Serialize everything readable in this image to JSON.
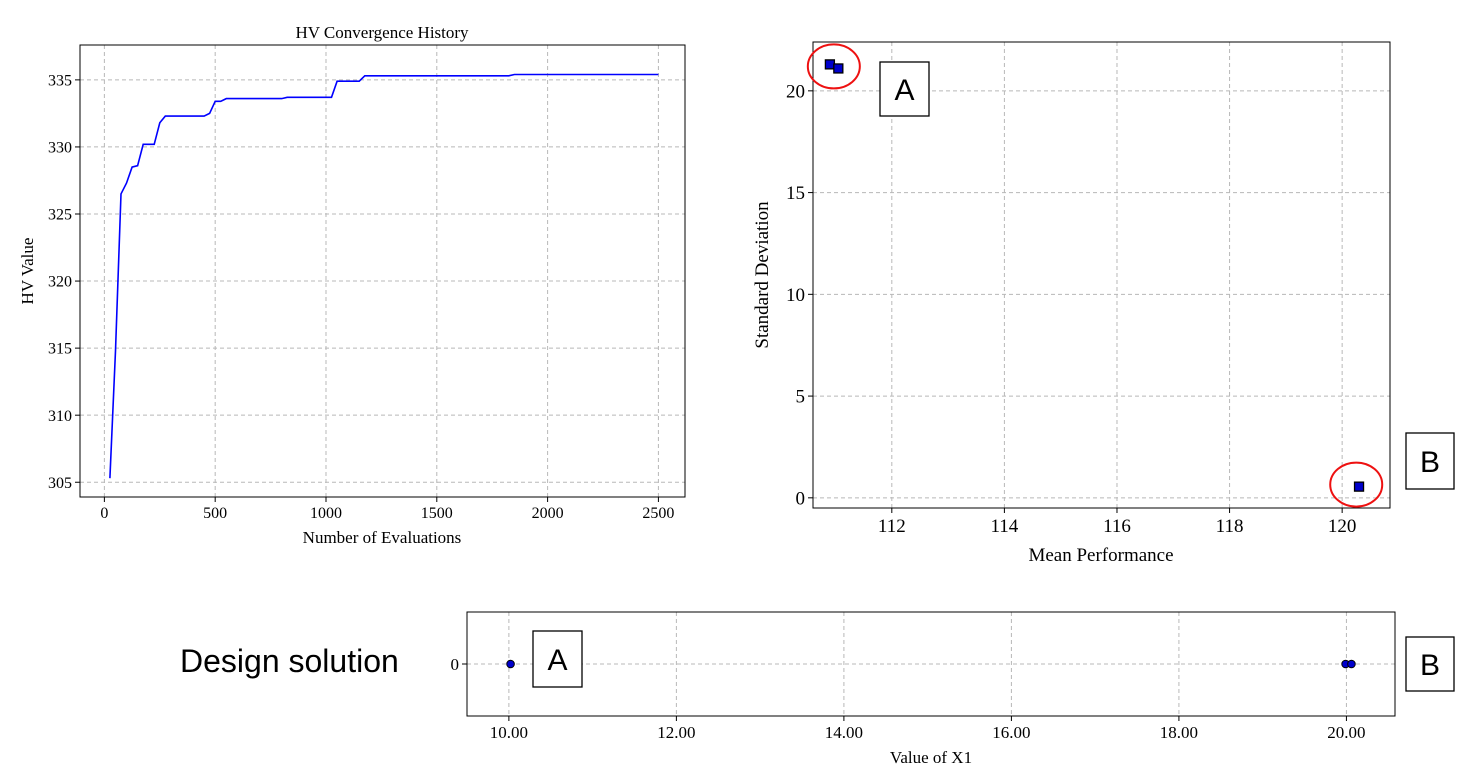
{
  "colors": {
    "line": "#0000ff",
    "marker_fill": "#0000cc",
    "marker_edge": "#000000",
    "grid": "#b8b8b8",
    "highlight": "#ee1111"
  },
  "annotations": {
    "label_a": "A",
    "label_b": "B",
    "row_label": "Design solution"
  },
  "chart_data": [
    {
      "type": "line",
      "title": "HV Convergence History",
      "xlabel": "Number of Evaluations",
      "ylabel": "HV Value",
      "xlim": [
        -110,
        2620
      ],
      "ylim": [
        303.9,
        337.6
      ],
      "xticks": [
        0,
        500,
        1000,
        1500,
        2000,
        2500
      ],
      "yticks": [
        305,
        310,
        315,
        320,
        325,
        330,
        335
      ],
      "grid": true,
      "series": [
        {
          "x": [
            25,
            50,
            75,
            100,
            125,
            150,
            175,
            200,
            225,
            250,
            275,
            300,
            450,
            475,
            500,
            525,
            550,
            800,
            825,
            850,
            1025,
            1050,
            1150,
            1175,
            1825,
            1850,
            2500
          ],
          "values": [
            305.3,
            314.8,
            326.5,
            327.3,
            328.5,
            328.6,
            330.2,
            330.2,
            330.2,
            331.8,
            332.3,
            332.3,
            332.3,
            332.5,
            333.4,
            333.4,
            333.6,
            333.6,
            333.7,
            333.7,
            333.7,
            334.9,
            334.9,
            335.3,
            335.3,
            335.4,
            335.4
          ]
        }
      ]
    },
    {
      "type": "scatter",
      "title": "",
      "xlabel": "Mean Performance",
      "ylabel": "Standard Deviation",
      "xlim": [
        110.6,
        120.85
      ],
      "ylim": [
        -0.5,
        22.4
      ],
      "xticks": [
        112,
        114,
        116,
        118,
        120
      ],
      "yticks": [
        0,
        5,
        10,
        15,
        20
      ],
      "grid": true,
      "series": [
        {
          "marker": "square",
          "points": [
            {
              "x": 110.9,
              "y": 21.3
            },
            {
              "x": 111.05,
              "y": 21.1
            },
            {
              "x": 120.3,
              "y": 0.55
            }
          ]
        }
      ],
      "highlights": [
        {
          "label": "A",
          "x": 110.97,
          "y": 21.2
        },
        {
          "label": "B",
          "x": 120.25,
          "y": 0.65
        }
      ]
    },
    {
      "type": "scatter",
      "title": "",
      "xlabel": "Value of X1",
      "ylabel": "",
      "xlim": [
        9.5,
        20.58
      ],
      "ylim": [
        -1,
        1
      ],
      "xticks": [
        10,
        12,
        14,
        16,
        18,
        20
      ],
      "xtick_labels": [
        "10.00",
        "12.00",
        "14.00",
        "16.00",
        "18.00",
        "20.00"
      ],
      "yticks": [
        0
      ],
      "grid": true,
      "series": [
        {
          "marker": "circle",
          "points": [
            {
              "x": 10.02,
              "y": 0
            },
            {
              "x": 19.99,
              "y": 0
            },
            {
              "x": 20.06,
              "y": 0
            }
          ]
        }
      ]
    }
  ]
}
